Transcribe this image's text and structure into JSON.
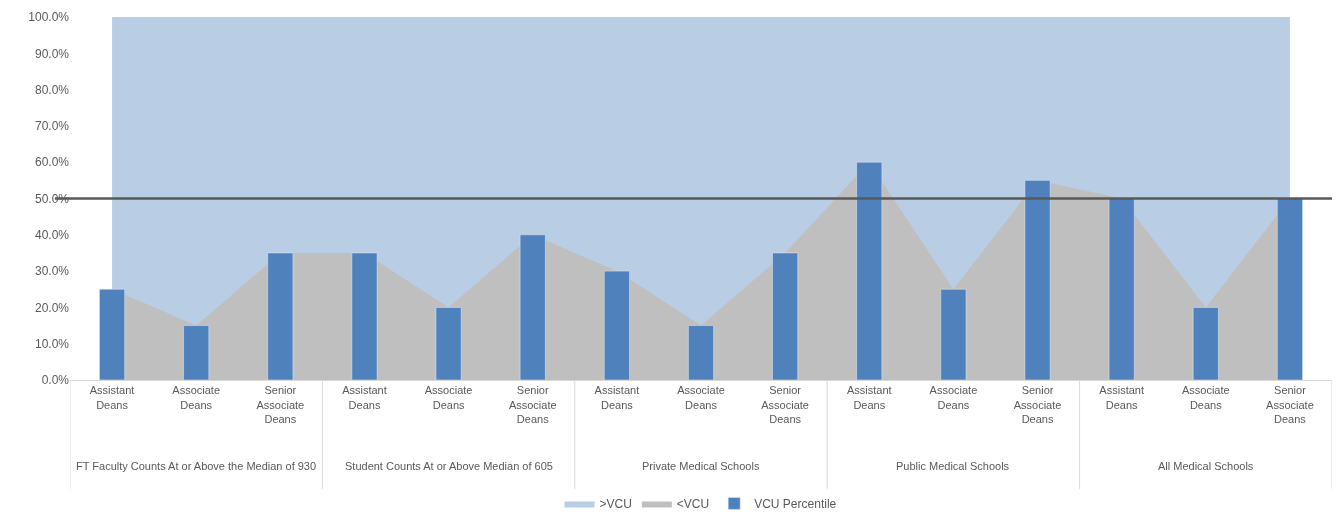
{
  "chart_data": {
    "type": "bar",
    "categories": [
      "Assistant Deans",
      "Associate Deans",
      "Senior Associate Deans",
      "Assistant Deans",
      "Associate Deans",
      "Senior Associate Deans",
      "Assistant Deans",
      "Associate Deans",
      "Senior Associate Deans",
      "Assistant Deans",
      "Associate Deans",
      "Senior Associate Deans",
      "Assistant Deans",
      "Associate Deans",
      "Senior Associate Deans"
    ],
    "series": [
      {
        "name": ">VCU",
        "type": "area",
        "color": "#b9cde5",
        "values": [
          100,
          100,
          100,
          100,
          100,
          100,
          100,
          100,
          100,
          100,
          100,
          100,
          100,
          100,
          100
        ]
      },
      {
        "name": "<VCU",
        "type": "area",
        "color": "#bfbfbf",
        "values": [
          25,
          15,
          35,
          35,
          20,
          40,
          30,
          15,
          35,
          60,
          25,
          55,
          50,
          20,
          50
        ]
      },
      {
        "name": "VCU Percentile",
        "color": "#4f81bd",
        "values": [
          25,
          15,
          35,
          35,
          20,
          40,
          30,
          15,
          35,
          60,
          25,
          55,
          50,
          20,
          50
        ]
      }
    ],
    "annotations": [
      "FT Faculty Counts At or Above the Median of 930",
      "Student Counts At or Above Median of 605",
      "Private Medical Schools",
      "Public Medical Schools",
      "All Medical Schools"
    ],
    "ylim": [
      0,
      100
    ],
    "yticks": [
      {
        "value": 0,
        "label": "0.0%"
      },
      {
        "value": 10,
        "label": "10.0%"
      },
      {
        "value": 20,
        "label": "20.0%"
      },
      {
        "value": 30,
        "label": "30.0%"
      },
      {
        "value": 40,
        "label": "40.0%"
      },
      {
        "value": 50,
        "label": "50.0%"
      },
      {
        "value": 60,
        "label": "60.0%"
      },
      {
        "value": 70,
        "label": "70.0%"
      },
      {
        "value": 80,
        "label": "80.0%"
      },
      {
        "value": 90,
        "label": "90.0%"
      },
      {
        "value": 100,
        "label": "100.0%"
      }
    ],
    "ref_lines": [
      {
        "axis": "y",
        "value": 50,
        "color": "#595959"
      }
    ],
    "legend": "bottom"
  }
}
